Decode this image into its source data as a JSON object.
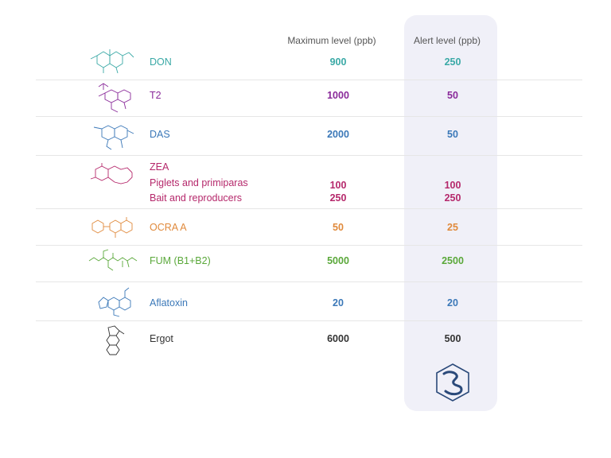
{
  "headers": {
    "max_level": "Maximum level (ppb)",
    "alert_level": "Alert level (ppb)"
  },
  "rows": [
    {
      "name": "DON",
      "max": "900",
      "alert": "250",
      "color": "#3aa9a6",
      "icon": "don-molecule-icon"
    },
    {
      "name": "T2",
      "max": "1000",
      "alert": "50",
      "color": "#8a2a9a",
      "icon": "t2-molecule-icon"
    },
    {
      "name": "DAS",
      "max": "2000",
      "alert": "50",
      "color": "#3b78b8",
      "icon": "das-molecule-icon"
    },
    {
      "name": "ZEA",
      "color": "#b5286b",
      "icon": "zea-molecule-icon",
      "sub": [
        {
          "name": "Piglets and primiparas",
          "max": "100",
          "alert": "100"
        },
        {
          "name": "Bait and reproducers",
          "max": "250",
          "alert": "250"
        }
      ]
    },
    {
      "name": "OCRA A",
      "max": "50",
      "alert": "25",
      "color": "#e08a3c",
      "icon": "ocra-molecule-icon"
    },
    {
      "name": "FUM (B1+B2)",
      "max": "5000",
      "alert": "2500",
      "color": "#5aa83a",
      "icon": "fum-molecule-icon"
    },
    {
      "name": "Aflatoxin",
      "max": "20",
      "alert": "20",
      "color": "#3b78b8",
      "icon": "aflatoxin-molecule-icon"
    },
    {
      "name": "Ergot",
      "max": "6000",
      "alert": "500",
      "color": "#333333",
      "icon": "ergot-molecule-icon"
    }
  ],
  "logo": {
    "icon": "hexagon-brand-logo",
    "color": "#2b4a7a"
  }
}
